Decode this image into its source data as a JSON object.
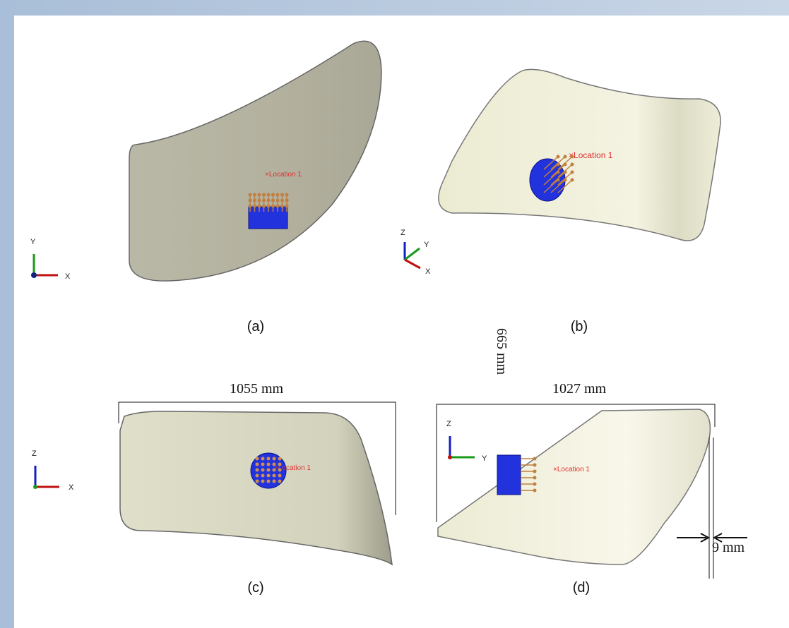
{
  "figure": {
    "panels": [
      {
        "caption": "(a)",
        "location_label": "Location 1",
        "axis_labels": [
          "Y",
          "X"
        ]
      },
      {
        "caption": "(b)",
        "location_label": "Location 1",
        "axis_labels": [
          "Z",
          "Y",
          "X"
        ]
      },
      {
        "caption": "(c)",
        "location_label": "Location 1",
        "axis_labels": [
          "Z",
          "X"
        ]
      },
      {
        "caption": "(d)",
        "location_label": "Location 1",
        "axis_labels": [
          "Z",
          "Y"
        ]
      }
    ],
    "dimensions": {
      "width_c": "1055 mm",
      "width_d": "1027 mm",
      "height_d": "665 mm",
      "thickness_d": "9 mm"
    }
  }
}
